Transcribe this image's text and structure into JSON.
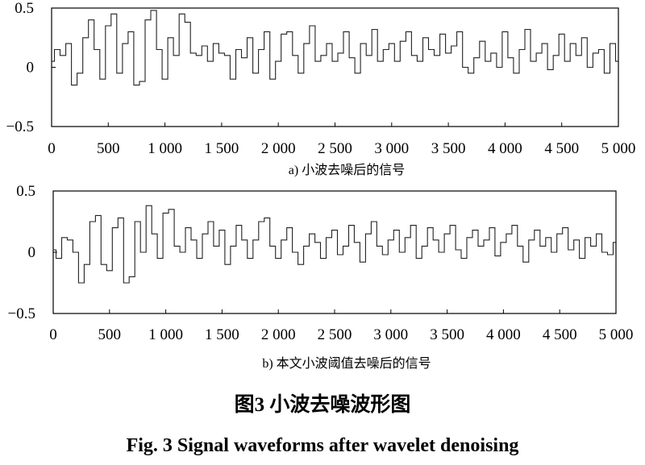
{
  "figure": {
    "title_cn": "图3  小波去噪波形图",
    "title_en": "Fig. 3  Signal waveforms after wavelet denoising"
  },
  "chart_data": [
    {
      "type": "line",
      "panel": "a",
      "caption": "a)   小波去噪后的信号",
      "xlim": [
        0,
        5000
      ],
      "ylim": [
        -0.5,
        0.5
      ],
      "xticks": [
        0,
        500,
        1000,
        1500,
        2000,
        2500,
        3000,
        3500,
        4000,
        4500,
        5000
      ],
      "xtick_labels": [
        "0",
        "500",
        "1 000",
        "1 500",
        "2 000",
        "2 500",
        "3 000",
        "3 500",
        "4 000",
        "4 500",
        "5 000"
      ],
      "yticks": [
        0.5,
        0,
        -0.5
      ],
      "ytick_labels": [
        "0.5",
        "0",
        "−0.5"
      ],
      "grid": false,
      "series": [
        {
          "color": "#222222",
          "x": [
            0,
            50,
            100,
            150,
            200,
            250,
            300,
            350,
            400,
            450,
            500,
            550,
            600,
            650,
            700,
            750,
            800,
            850,
            900,
            950,
            1000,
            1050,
            1100,
            1150,
            1200,
            1250,
            1300,
            1350,
            1400,
            1450,
            1500,
            1550,
            1600,
            1650,
            1700,
            1750,
            1800,
            1850,
            1900,
            1950,
            2000,
            2050,
            2100,
            2150,
            2200,
            2250,
            2300,
            2350,
            2400,
            2450,
            2500,
            2550,
            2600,
            2650,
            2700,
            2750,
            2800,
            2850,
            2900,
            2950,
            3000,
            3050,
            3100,
            3150,
            3200,
            3250,
            3300,
            3350,
            3400,
            3450,
            3500,
            3550,
            3600,
            3650,
            3700,
            3750,
            3800,
            3850,
            3900,
            3950,
            4000,
            4050,
            4100,
            4150,
            4200,
            4250,
            4300,
            4350,
            4400,
            4450,
            4500,
            4550,
            4600,
            4650,
            4700,
            4750,
            4800,
            4850,
            4900,
            4950,
            5000
          ],
          "y": [
            0.05,
            0.15,
            0.1,
            0.2,
            -0.15,
            -0.05,
            0.25,
            0.4,
            0.15,
            -0.1,
            0.35,
            0.45,
            -0.05,
            0.2,
            0.3,
            -0.15,
            -0.12,
            0.4,
            0.48,
            0.15,
            -0.1,
            0.25,
            0.1,
            0.45,
            0.38,
            0.12,
            0.1,
            0.18,
            0.05,
            0.2,
            0.12,
            0.1,
            -0.1,
            0.15,
            0.08,
            0.25,
            -0.05,
            0.15,
            0.3,
            -0.1,
            0.05,
            0.28,
            0.3,
            0.1,
            -0.05,
            0.2,
            0.35,
            0.05,
            0.1,
            0.2,
            0.05,
            0.12,
            0.3,
            0.08,
            -0.05,
            0.2,
            0.1,
            0.32,
            0.05,
            0.15,
            0.2,
            0.05,
            0.22,
            0.3,
            0.1,
            0.05,
            0.25,
            0.15,
            0.1,
            0.28,
            0.12,
            0.18,
            0.3,
            0.0,
            -0.05,
            0.08,
            0.22,
            0.05,
            0.12,
            0.0,
            0.3,
            0.08,
            -0.05,
            0.15,
            0.32,
            0.05,
            0.12,
            0.2,
            -0.02,
            0.1,
            0.28,
            0.05,
            0.2,
            0.1,
            0.25,
            0.0,
            0.12,
            0.15,
            -0.05,
            0.2,
            0.05
          ]
        }
      ]
    },
    {
      "type": "line",
      "panel": "b",
      "caption": "b)   本文小波阈值去噪后的信号",
      "xlim": [
        0,
        5000
      ],
      "ylim": [
        -0.5,
        0.5
      ],
      "xticks": [
        0,
        500,
        1000,
        1500,
        2000,
        2500,
        3000,
        3500,
        4000,
        4500,
        5000
      ],
      "xtick_labels": [
        "0",
        "500",
        "1 000",
        "1 500",
        "2 000",
        "2 500",
        "3 000",
        "3 500",
        "4 000",
        "4 500",
        "5 000"
      ],
      "yticks": [
        0.5,
        0,
        -0.5
      ],
      "ytick_labels": [
        "0.5",
        "0",
        "−0.5"
      ],
      "grid": false,
      "series": [
        {
          "color": "#222222",
          "x": [
            0,
            50,
            100,
            150,
            200,
            250,
            300,
            350,
            400,
            450,
            500,
            550,
            600,
            650,
            700,
            750,
            800,
            850,
            900,
            950,
            1000,
            1050,
            1100,
            1150,
            1200,
            1250,
            1300,
            1350,
            1400,
            1450,
            1500,
            1550,
            1600,
            1650,
            1700,
            1750,
            1800,
            1850,
            1900,
            1950,
            2000,
            2050,
            2100,
            2150,
            2200,
            2250,
            2300,
            2350,
            2400,
            2450,
            2500,
            2550,
            2600,
            2650,
            2700,
            2750,
            2800,
            2850,
            2900,
            2950,
            3000,
            3050,
            3100,
            3150,
            3200,
            3250,
            3300,
            3350,
            3400,
            3450,
            3500,
            3550,
            3600,
            3650,
            3700,
            3750,
            3800,
            3850,
            3900,
            3950,
            4000,
            4050,
            4100,
            4150,
            4200,
            4250,
            4300,
            4350,
            4400,
            4450,
            4500,
            4550,
            4600,
            4650,
            4700,
            4750,
            4800,
            4850,
            4900,
            4950,
            5000
          ],
          "y": [
            0.02,
            -0.05,
            0.12,
            0.1,
            0.0,
            -0.25,
            -0.1,
            0.25,
            0.3,
            -0.1,
            -0.15,
            0.2,
            0.28,
            -0.25,
            -0.2,
            0.25,
            0.0,
            0.38,
            0.15,
            -0.05,
            0.32,
            0.35,
            0.05,
            0.0,
            0.2,
            0.1,
            -0.05,
            0.15,
            0.25,
            0.05,
            0.18,
            -0.1,
            0.05,
            0.22,
            0.1,
            -0.05,
            0.1,
            0.25,
            0.28,
            0.05,
            -0.05,
            0.1,
            0.2,
            0.0,
            -0.1,
            0.05,
            0.15,
            0.08,
            -0.05,
            0.12,
            0.18,
            -0.02,
            0.05,
            0.22,
            0.08,
            -0.08,
            0.15,
            0.25,
            0.05,
            -0.02,
            0.1,
            0.18,
            0.0,
            0.12,
            0.22,
            -0.05,
            0.05,
            0.2,
            0.1,
            0.0,
            0.15,
            0.22,
            0.02,
            -0.05,
            0.12,
            0.18,
            0.05,
            0.1,
            0.2,
            -0.03,
            0.08,
            0.15,
            0.22,
            0.05,
            -0.08,
            0.1,
            0.18,
            0.05,
            0.12,
            0.0,
            0.15,
            0.2,
            0.02,
            0.1,
            -0.05,
            0.12,
            0.05,
            0.15,
            0.0,
            -0.02,
            0.08
          ]
        }
      ]
    }
  ]
}
